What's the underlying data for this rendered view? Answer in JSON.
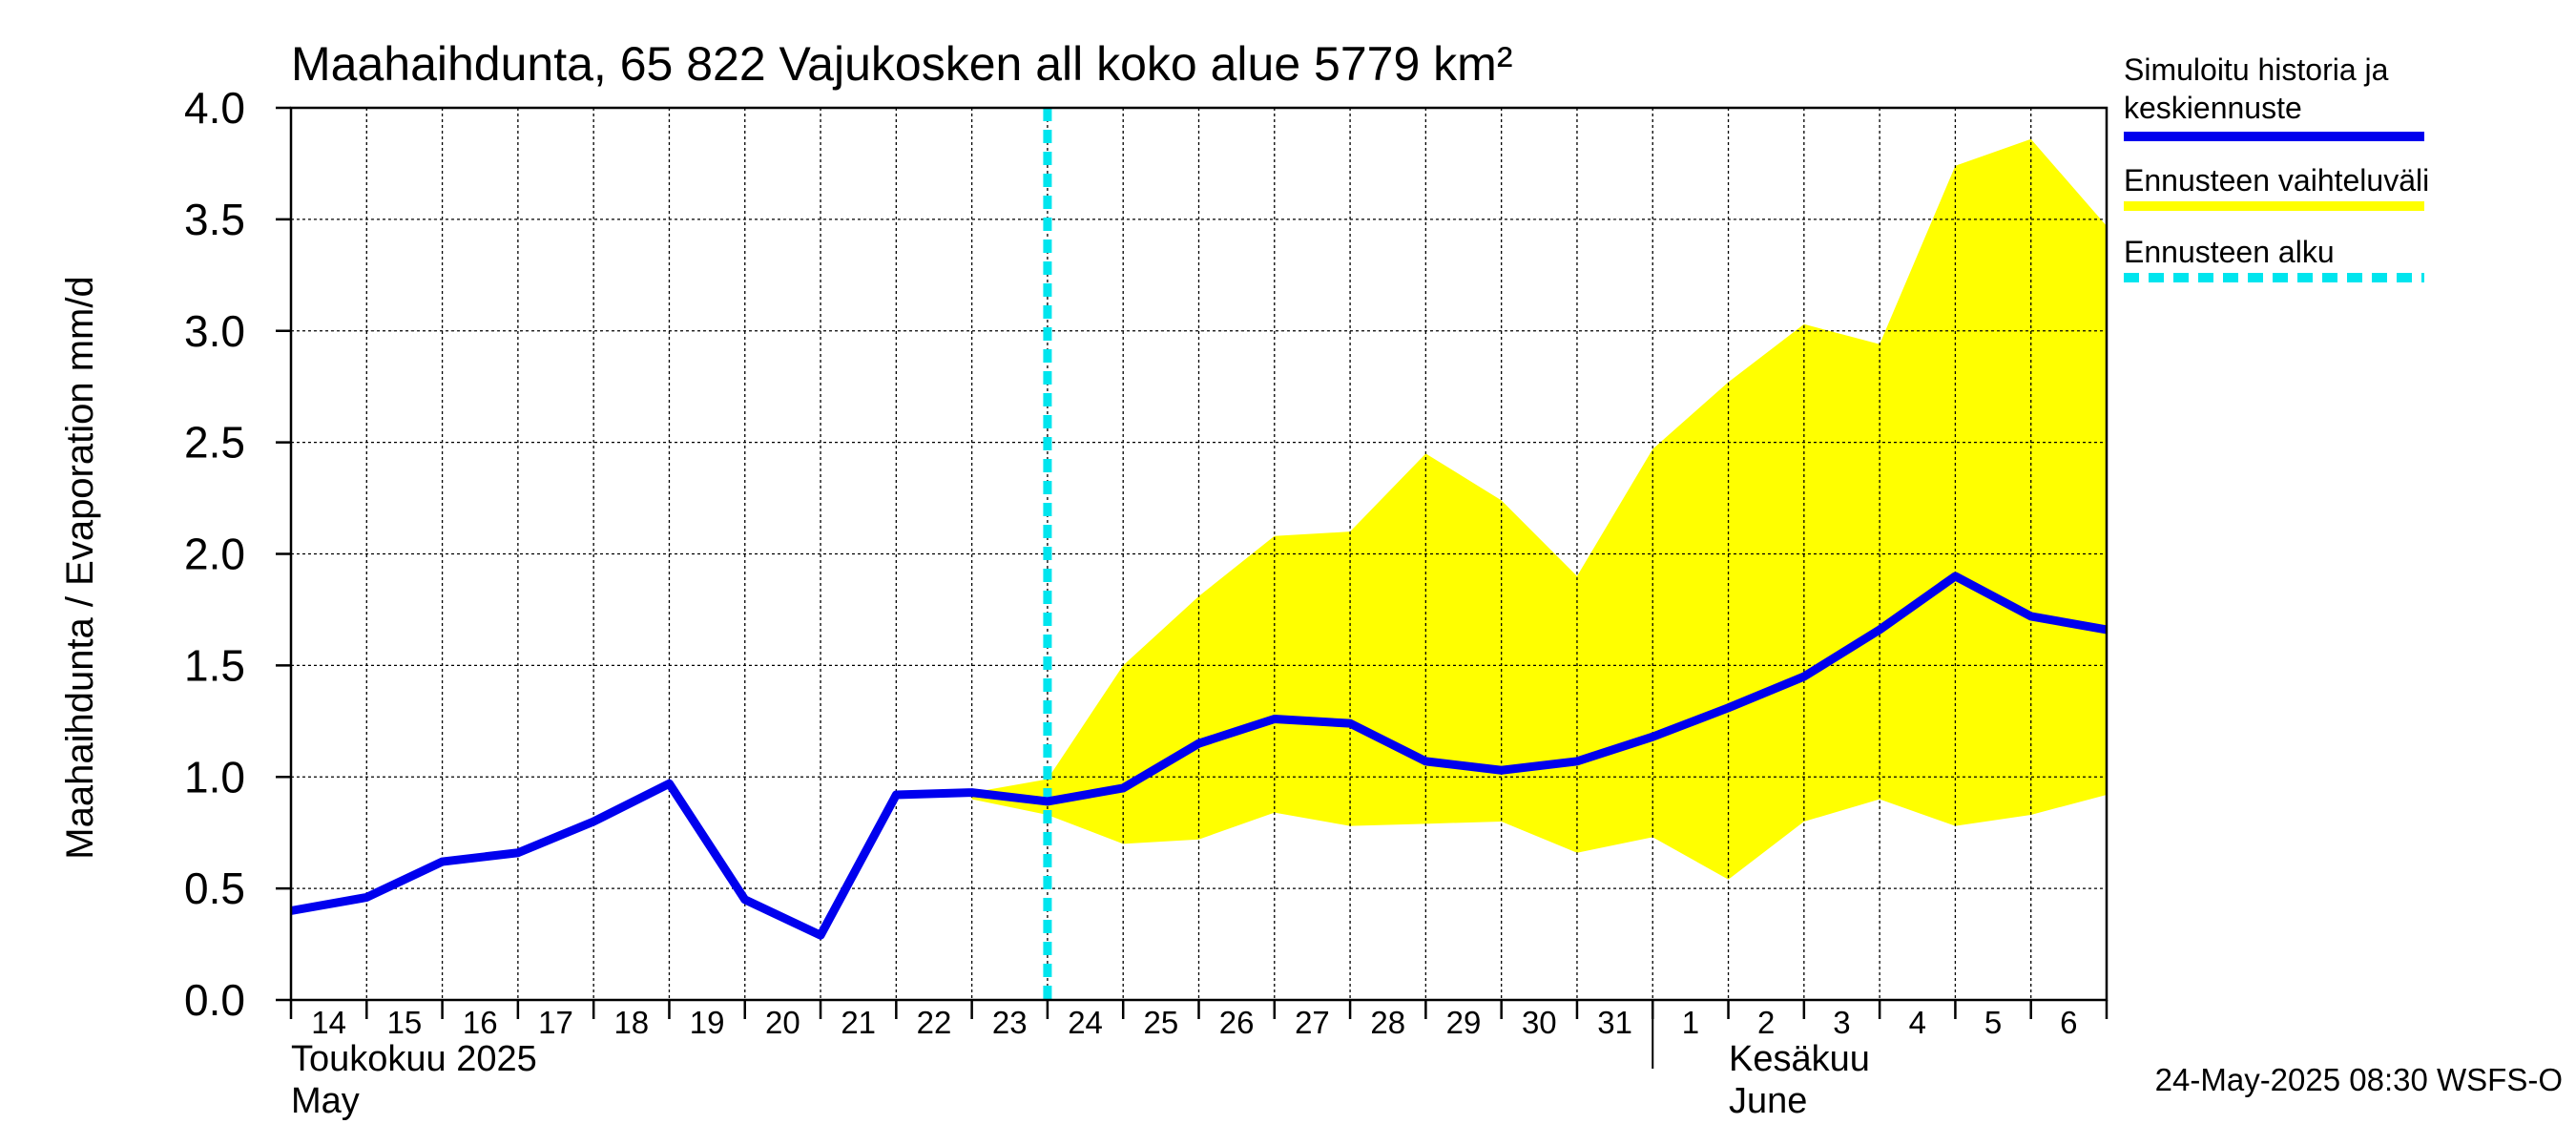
{
  "chart_data": {
    "type": "line",
    "title": "Maahaihdunta, 65 822 Vajukosken all koko alue 5779 km²",
    "ylabel": "Maahaihdunta / Evaporation   mm/d",
    "ylim": [
      0,
      4
    ],
    "yticks": [
      "0.0",
      "0.5",
      "1.0",
      "1.5",
      "2.0",
      "2.5",
      "3.0",
      "3.5",
      "4.0"
    ],
    "grid": true,
    "legend_position": "right",
    "x_tick_labels": [
      "14",
      "15",
      "16",
      "17",
      "18",
      "19",
      "20",
      "21",
      "22",
      "23",
      "24",
      "25",
      "26",
      "27",
      "28",
      "29",
      "30",
      "31",
      "1",
      "2",
      "3",
      "4",
      "5",
      "6"
    ],
    "month_labels": [
      {
        "name_fi": "Toukokuu  2025",
        "name_en": "May"
      },
      {
        "name_fi": "Kesäkuu",
        "name_en": "June"
      }
    ],
    "x_dates": [
      "2025-05-14",
      "2025-05-15",
      "2025-05-16",
      "2025-05-17",
      "2025-05-18",
      "2025-05-19",
      "2025-05-20",
      "2025-05-21",
      "2025-05-22",
      "2025-05-23",
      "2025-05-24",
      "2025-05-25",
      "2025-05-26",
      "2025-05-27",
      "2025-05-28",
      "2025-05-29",
      "2025-05-30",
      "2025-05-31",
      "2025-06-01",
      "2025-06-02",
      "2025-06-03",
      "2025-06-04",
      "2025-06-05",
      "2025-06-06",
      "2025-06-07"
    ],
    "forecast_start": "2025-05-24",
    "series": [
      {
        "name": "Simuloitu historia ja keskiennuste",
        "color": "#0000ee",
        "values": [
          0.4,
          0.46,
          0.62,
          0.66,
          0.8,
          0.97,
          0.45,
          0.29,
          0.92,
          0.93,
          0.89,
          0.95,
          1.15,
          1.26,
          1.24,
          1.07,
          1.03,
          1.07,
          1.18,
          1.31,
          1.45,
          1.66,
          1.9,
          1.72,
          1.66
        ]
      }
    ],
    "band": {
      "name": "Ennusteen vaihteluväli",
      "color": "#ffff00",
      "start_date": "2025-05-23",
      "upper": [
        0.93,
        0.99,
        1.5,
        1.81,
        2.08,
        2.1,
        2.45,
        2.24,
        1.9,
        2.47,
        2.77,
        3.03,
        2.94,
        3.74,
        3.86,
        3.47
      ],
      "lower": [
        0.9,
        0.83,
        0.7,
        0.72,
        0.84,
        0.78,
        0.79,
        0.8,
        0.66,
        0.73,
        0.54,
        0.8,
        0.9,
        0.78,
        0.83,
        0.92
      ]
    },
    "forecast_line": {
      "name": "Ennusteen alku",
      "color": "#00e5ee"
    }
  },
  "legend": [
    {
      "label_line1": "Simuloitu historia ja",
      "label_line2": "keskiennuste",
      "color": "#0000ee",
      "style": "solid"
    },
    {
      "label_line1": "Ennusteen vaihteluväli",
      "label_line2": "",
      "color": "#ffff00",
      "style": "solid"
    },
    {
      "label_line1": "Ennusteen alku",
      "label_line2": "",
      "color": "#00e5ee",
      "style": "dashed"
    }
  ],
  "footer": "24-May-2025 08:30 WSFS-O"
}
